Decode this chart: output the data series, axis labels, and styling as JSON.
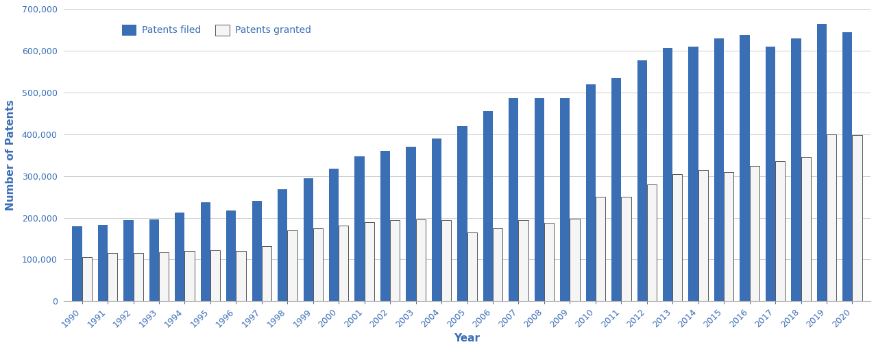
{
  "years": [
    1990,
    1991,
    1992,
    1993,
    1994,
    1995,
    1996,
    1997,
    1998,
    1999,
    2000,
    2001,
    2002,
    2003,
    2004,
    2005,
    2006,
    2007,
    2008,
    2009,
    2010,
    2011,
    2012,
    2013,
    2014,
    2015,
    2016,
    2017,
    2018,
    2019,
    2020
  ],
  "patents_filed": [
    180000,
    183000,
    194000,
    196000,
    212000,
    237000,
    217000,
    240000,
    268000,
    294000,
    318000,
    347000,
    360000,
    370000,
    390000,
    420000,
    455000,
    487000,
    487000,
    487000,
    520000,
    535000,
    578000,
    607000,
    610000,
    630000,
    638000,
    610000,
    630000,
    665000,
    645000
  ],
  "patents_granted": [
    105000,
    115000,
    115000,
    118000,
    120000,
    122000,
    120000,
    132000,
    170000,
    175000,
    182000,
    190000,
    194000,
    196000,
    195000,
    165000,
    175000,
    195000,
    188000,
    198000,
    250000,
    250000,
    280000,
    305000,
    315000,
    310000,
    325000,
    335000,
    345000,
    400000,
    398000
  ],
  "filed_color": "#3A6EB5",
  "granted_color": "#F5F5F5",
  "granted_edge_color": "#555555",
  "xlabel": "Year",
  "ylabel": "Number of Patents",
  "legend_filed": "Patents filed",
  "legend_granted": "Patents granted",
  "ylim": [
    0,
    700000
  ],
  "yticks": [
    0,
    100000,
    200000,
    300000,
    400000,
    500000,
    600000,
    700000
  ],
  "background_color": "#FFFFFF",
  "grid_color": "#CCCCCC",
  "text_color": "#3A6EB5",
  "bar_width": 0.38,
  "title_fontsize": 10,
  "axis_fontsize": 10,
  "tick_fontsize": 9,
  "legend_fontsize": 10
}
